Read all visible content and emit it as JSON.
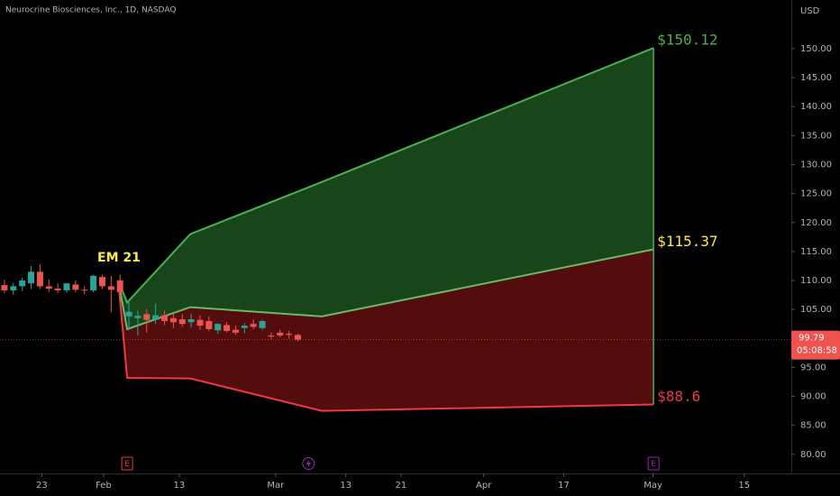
{
  "chart_data": {
    "type": "candlestick",
    "title": "Neurocrine Biosciences, Inc., 1D, NASDAQ",
    "currency": "USD",
    "xlim": [
      0,
      89
    ],
    "ylim": [
      76.7,
      158.4
    ],
    "xticks": [
      {
        "value": 4.7,
        "label": "23"
      },
      {
        "value": 11.65,
        "label": "Feb"
      },
      {
        "value": 20.16,
        "label": "13"
      },
      {
        "value": 31.0,
        "label": "Mar"
      },
      {
        "value": 38.9,
        "label": "13"
      },
      {
        "value": 45.1,
        "label": "21"
      },
      {
        "value": 54.4,
        "label": "Apr"
      },
      {
        "value": 63.4,
        "label": "17"
      },
      {
        "value": 73.45,
        "label": "May"
      },
      {
        "value": 83.7,
        "label": "15"
      }
    ],
    "yticks": [
      {
        "value": 80,
        "label": "80.00"
      },
      {
        "value": 85,
        "label": "85.00"
      },
      {
        "value": 90,
        "label": "90.00"
      },
      {
        "value": 95,
        "label": "95.00"
      },
      {
        "value": 100,
        "label": "100.00"
      },
      {
        "value": 105,
        "label": "105.00"
      },
      {
        "value": 110,
        "label": "110.00"
      },
      {
        "value": 115,
        "label": "115.00"
      },
      {
        "value": 120,
        "label": "120.00"
      },
      {
        "value": 125,
        "label": "125.00"
      },
      {
        "value": 130,
        "label": "130.00"
      },
      {
        "value": 135,
        "label": "135.00"
      },
      {
        "value": 140,
        "label": "140.00"
      },
      {
        "value": 145,
        "label": "145.00"
      },
      {
        "value": 150,
        "label": "150.00"
      }
    ],
    "up_color": "#26a69a",
    "down_color": "#ef5350",
    "candles": {
      "x": [
        0.5,
        1.5,
        2.5,
        3.5,
        4.5,
        5.5,
        6.5,
        7.5,
        8.5,
        9.5,
        10.5,
        11.5,
        12.5,
        13.5,
        14.5,
        15.5,
        16.5,
        17.5,
        18.5,
        19.5,
        20.5,
        21.5,
        22.5,
        23.5,
        24.5,
        25.5,
        26.5,
        27.5,
        28.5,
        29.5,
        30.5,
        31.5,
        32.5,
        33.5
      ],
      "open": [
        109.2,
        108.3,
        109.0,
        109.5,
        111.5,
        109.0,
        108.6,
        108.3,
        109.3,
        108.4,
        108.3,
        110.6,
        109.0,
        110.0,
        103.8,
        103.5,
        104.2,
        103.2,
        104.0,
        103.5,
        103.3,
        102.8,
        103.2,
        103.0,
        101.4,
        102.3,
        101.5,
        101.8,
        102.5,
        101.8,
        100.5,
        101.0,
        100.8,
        100.6
      ],
      "high": [
        110.1,
        109.6,
        110.5,
        112.5,
        112.8,
        110.2,
        109.5,
        109.6,
        110.0,
        109.0,
        111.0,
        111.0,
        110.8,
        111.0,
        106.5,
        104.8,
        105.0,
        106.0,
        104.8,
        104.4,
        104.2,
        104.3,
        104.0,
        103.8,
        102.6,
        102.8,
        102.2,
        102.6,
        103.3,
        103.2,
        101.0,
        101.5,
        101.3,
        100.8
      ],
      "low": [
        107.8,
        107.5,
        108.2,
        108.5,
        108.5,
        108.0,
        107.8,
        107.9,
        108.0,
        107.6,
        108.0,
        108.5,
        104.5,
        106.0,
        101.5,
        100.5,
        101.0,
        102.5,
        102.3,
        101.8,
        102.0,
        101.9,
        101.5,
        101.3,
        100.8,
        101.0,
        100.6,
        100.9,
        101.6,
        101.5,
        99.9,
        100.2,
        100.0,
        99.5
      ],
      "close": [
        108.3,
        109.0,
        110.0,
        111.5,
        109.0,
        108.6,
        108.3,
        109.5,
        108.4,
        108.3,
        110.8,
        109.0,
        108.4,
        108.0,
        104.6,
        103.9,
        103.2,
        104.0,
        103.0,
        102.8,
        102.5,
        103.3,
        102.2,
        101.6,
        102.5,
        101.3,
        101.0,
        102.2,
        102.0,
        103.0,
        100.3,
        100.5,
        100.6,
        99.79
      ]
    },
    "last_price": 99.79,
    "countdown": "05:08:58",
    "expected_move": {
      "label": "EM 21",
      "x": [
        13.3,
        14.3,
        21.4,
        36.2,
        73.5
      ],
      "series": [
        {
          "name": "upper",
          "color": "#4caf50",
          "values": [
            110,
            106.2,
            118,
            127.0,
            150.12
          ]
        },
        {
          "name": "middle",
          "color": "#66bb6a",
          "values": [
            110,
            101.6,
            105.4,
            103.8,
            115.37
          ]
        },
        {
          "name": "lower",
          "color": "#f23645",
          "values": [
            110,
            93.2,
            93.1,
            87.5,
            88.6
          ]
        }
      ],
      "annotations": [
        {
          "text": "$150.12",
          "value": 150.12,
          "color": "#4caf50"
        },
        {
          "text": "$115.37",
          "value": 115.37,
          "color": "#ffeb3b"
        },
        {
          "text": "$88.6",
          "value": 88.6,
          "color": "#f23645"
        }
      ]
    },
    "events": [
      {
        "x": 14.3,
        "label": "E",
        "color": "#f23645"
      },
      {
        "x": 34.7,
        "color": "#9c27b0"
      },
      {
        "x": 73.5,
        "label": "E",
        "color": "#9c27b0"
      }
    ]
  }
}
